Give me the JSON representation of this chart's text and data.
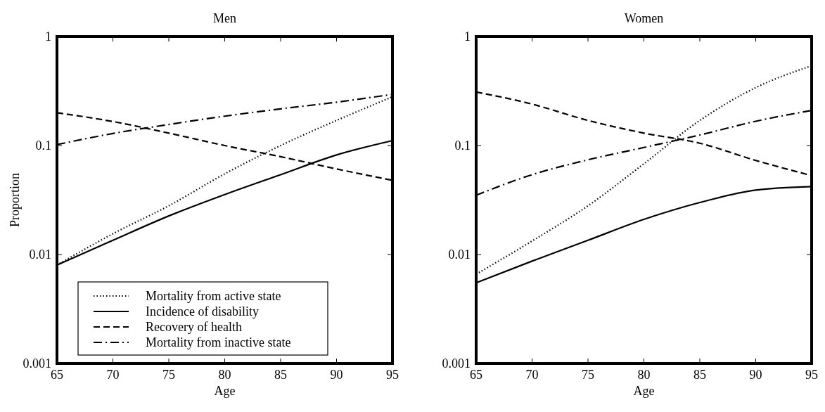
{
  "chart_data": [
    {
      "type": "line",
      "title": "Men",
      "xlabel": "Age",
      "ylabel": "Proportion",
      "x": [
        65,
        70,
        75,
        80,
        85,
        90,
        95
      ],
      "log": "y",
      "grid": false,
      "legend": "bottom",
      "xlim": [
        65,
        95
      ],
      "xticks": [
        65,
        70,
        75,
        80,
        85,
        90,
        95
      ],
      "ylim": [
        0.001,
        1
      ],
      "yticks": [
        0.001,
        0.01,
        0.1,
        1
      ],
      "series": [
        {
          "name": "Mortality from active state",
          "color": "#000000",
          "line_style": "dotted",
          "values": [
            0.008,
            0.0155,
            0.028,
            0.055,
            0.1,
            0.17,
            0.28
          ]
        },
        {
          "name": "Incidence of disability",
          "color": "#000000",
          "line_style": "solid",
          "values": [
            0.008,
            0.0135,
            0.0226,
            0.0355,
            0.054,
            0.082,
            0.111
          ]
        },
        {
          "name": "Recovery of health",
          "color": "#000000",
          "line_style": "dashed",
          "values": [
            0.2,
            0.166,
            0.13,
            0.1,
            0.079,
            0.061,
            0.048
          ]
        },
        {
          "name": "Mortality from inactive state",
          "color": "#000000",
          "line_style": "dashdot",
          "values": [
            0.102,
            0.129,
            0.156,
            0.186,
            0.217,
            0.25,
            0.295
          ]
        }
      ]
    },
    {
      "type": "line",
      "title": "Women",
      "xlabel": "Age",
      "x": [
        65,
        70,
        75,
        80,
        85,
        90,
        95
      ],
      "log": "y",
      "grid": false,
      "xlim": [
        65,
        95
      ],
      "xticks": [
        65,
        70,
        75,
        80,
        85,
        90,
        95
      ],
      "ylim": [
        0.001,
        1
      ],
      "yticks": [
        0.001,
        0.01,
        0.1,
        1
      ],
      "series": [
        {
          "color": "#000000",
          "line_style": "dotted",
          "values": [
            0.0066,
            0.0133,
            0.028,
            0.068,
            0.17,
            0.34,
            0.54
          ]
        },
        {
          "color": "#000000",
          "line_style": "solid",
          "values": [
            0.0055,
            0.0087,
            0.0135,
            0.021,
            0.03,
            0.039,
            0.042
          ]
        },
        {
          "color": "#000000",
          "line_style": "dashed",
          "values": [
            0.31,
            0.24,
            0.17,
            0.13,
            0.105,
            0.073,
            0.053
          ]
        },
        {
          "color": "#000000",
          "line_style": "dashdot",
          "values": [
            0.035,
            0.054,
            0.074,
            0.096,
            0.125,
            0.167,
            0.21
          ]
        }
      ]
    }
  ]
}
